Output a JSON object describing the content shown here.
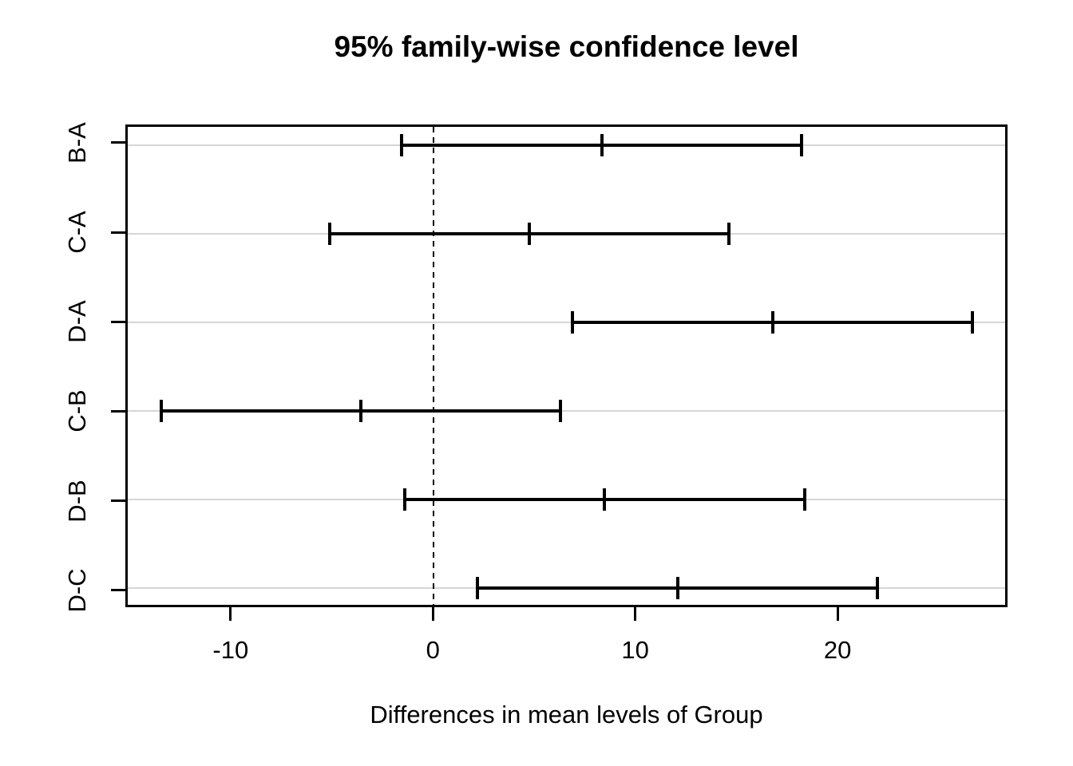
{
  "title": "95% family-wise confidence level",
  "xlabel": "Differences in mean levels of Group",
  "colors": {
    "foreground": "#000000",
    "row_gridline": "#d6d6d6",
    "background": "#ffffff"
  },
  "chart_data": {
    "type": "scatter",
    "subtype": "tukey-hsd-confidence-intervals",
    "title": "95% family-wise confidence level",
    "xlabel": "Differences in mean levels of Group",
    "ylabel": "",
    "categories": [
      "B-A",
      "C-A",
      "D-A",
      "C-B",
      "D-B",
      "D-C"
    ],
    "comparisons": [
      {
        "label": "B-A",
        "lwr": -1.58,
        "diff": 8.35,
        "upr": 18.28
      },
      {
        "label": "C-A",
        "lwr": -5.18,
        "diff": 4.75,
        "upr": 14.68
      },
      {
        "label": "D-A",
        "lwr": 6.91,
        "diff": 16.84,
        "upr": 26.77
      },
      {
        "label": "C-B",
        "lwr": -13.54,
        "diff": -3.61,
        "upr": 6.32
      },
      {
        "label": "D-B",
        "lwr": -1.43,
        "diff": 8.5,
        "upr": 18.43
      },
      {
        "label": "D-C",
        "lwr": 2.19,
        "diff": 12.12,
        "upr": 22.05
      }
    ],
    "xticks": [
      -10,
      0,
      10,
      20
    ],
    "xtick_labels": [
      "-10",
      "0",
      "10",
      "20"
    ],
    "xlim": [
      -15.2,
      28.4
    ],
    "zero_reference_line": 0,
    "grid": "light horizontal line at each comparison row",
    "legend": "none"
  }
}
